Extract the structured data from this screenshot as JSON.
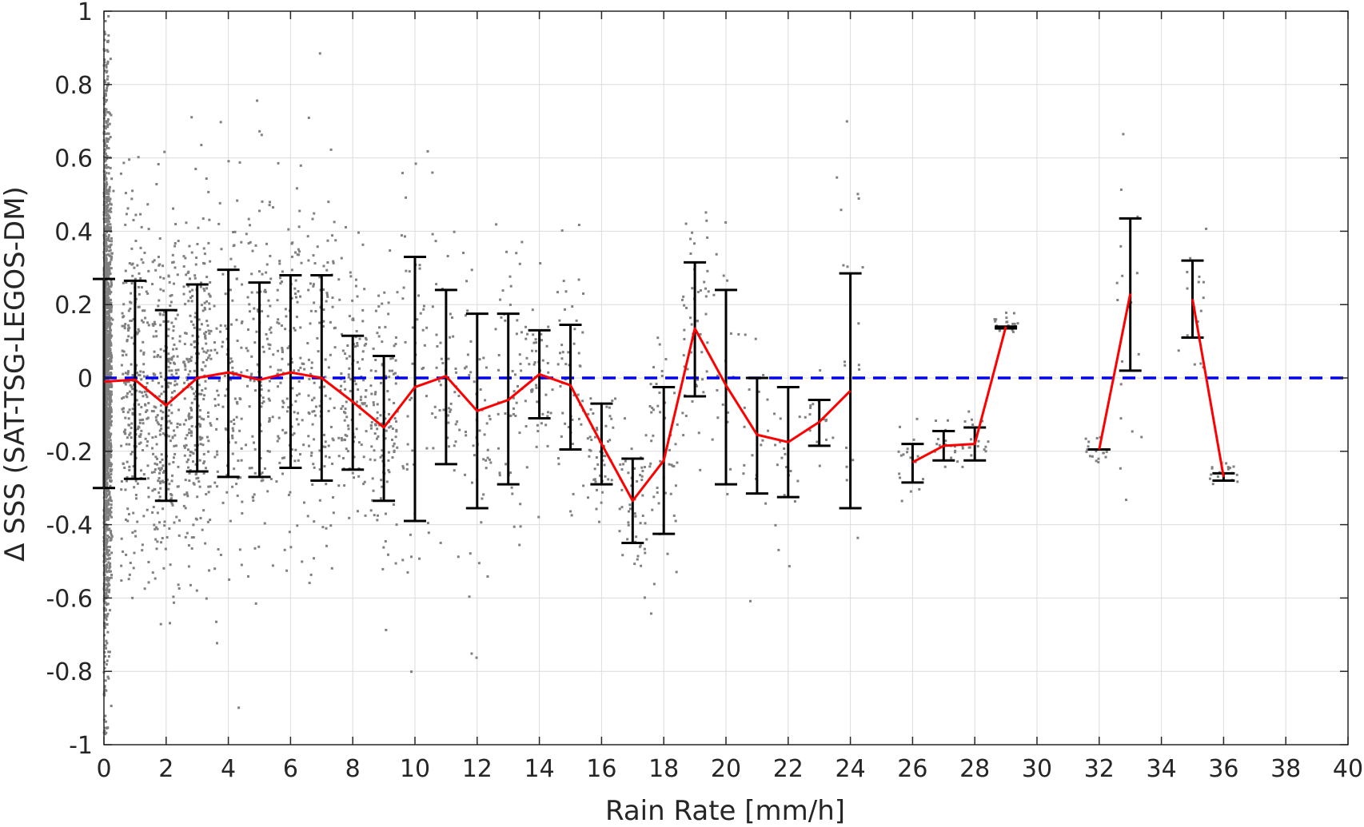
{
  "chart_data": {
    "type": "scatter",
    "title": "",
    "xlabel": "Rain Rate [mm/h]",
    "ylabel": "Δ SSS (SAT-TSG-LEGOS-DM)",
    "xlim": [
      0,
      40
    ],
    "ylim": [
      -1,
      1
    ],
    "xticks": [
      "0",
      "2",
      "4",
      "6",
      "8",
      "10",
      "12",
      "14",
      "16",
      "18",
      "20",
      "22",
      "24",
      "26",
      "28",
      "30",
      "32",
      "34",
      "36",
      "38",
      "40"
    ],
    "yticks": [
      "1",
      "0.8",
      "0.6",
      "0.4",
      "0.2",
      "0",
      "-0.2",
      "-0.4",
      "-0.6",
      "-0.8",
      "-1"
    ],
    "grid": true,
    "legend": "none",
    "colors": {
      "scatter": "#808080",
      "errorbar": "#000000",
      "mean_line": "#ff0000",
      "zero_line": "#0000ff",
      "grid": "#dcdcdc",
      "axes": "#262626"
    },
    "reference_line": {
      "y": 0,
      "style": "dashed"
    },
    "series": [
      {
        "kind": "errorbar",
        "segments": [
          {
            "x": [
              0,
              1,
              2,
              3,
              4,
              5,
              6,
              7,
              8,
              9,
              10,
              11,
              12,
              13,
              14,
              15,
              16,
              17,
              18,
              19,
              20,
              21,
              22,
              23,
              24
            ],
            "mean": [
              -0.01,
              -0.005,
              -0.075,
              0.0,
              0.015,
              -0.005,
              0.015,
              0.0,
              -0.065,
              -0.135,
              -0.025,
              0.005,
              -0.09,
              -0.06,
              0.01,
              -0.02,
              -0.18,
              -0.335,
              -0.225,
              0.135,
              -0.02,
              -0.155,
              -0.175,
              -0.12,
              -0.035
            ],
            "upper": [
              0.27,
              0.265,
              0.185,
              0.255,
              0.295,
              0.26,
              0.28,
              0.28,
              0.115,
              0.06,
              0.33,
              0.24,
              0.175,
              0.175,
              0.13,
              0.145,
              -0.07,
              -0.22,
              -0.025,
              0.315,
              0.24,
              0.0,
              -0.025,
              -0.06,
              0.285
            ],
            "lower": [
              -0.3,
              -0.275,
              -0.335,
              -0.255,
              -0.27,
              -0.27,
              -0.245,
              -0.28,
              -0.25,
              -0.335,
              -0.39,
              -0.235,
              -0.355,
              -0.29,
              -0.11,
              -0.195,
              -0.29,
              -0.45,
              -0.425,
              -0.05,
              -0.29,
              -0.315,
              -0.325,
              -0.185,
              -0.355
            ]
          },
          {
            "x": [
              26,
              27,
              28,
              29
            ],
            "mean": [
              -0.23,
              -0.185,
              -0.18,
              0.14
            ],
            "upper": [
              -0.18,
              -0.145,
              -0.135,
              0.14
            ],
            "lower": [
              -0.285,
              -0.225,
              -0.225,
              0.135
            ]
          },
          {
            "x": [
              32,
              33
            ],
            "mean": [
              -0.195,
              0.23
            ],
            "upper": [
              -0.195,
              0.435
            ],
            "lower": [
              -0.195,
              0.02
            ]
          },
          {
            "x": [
              35,
              36
            ],
            "mean": [
              0.215,
              -0.27
            ],
            "upper": [
              0.32,
              -0.26
            ],
            "lower": [
              0.11,
              -0.28
            ]
          }
        ]
      }
    ]
  }
}
